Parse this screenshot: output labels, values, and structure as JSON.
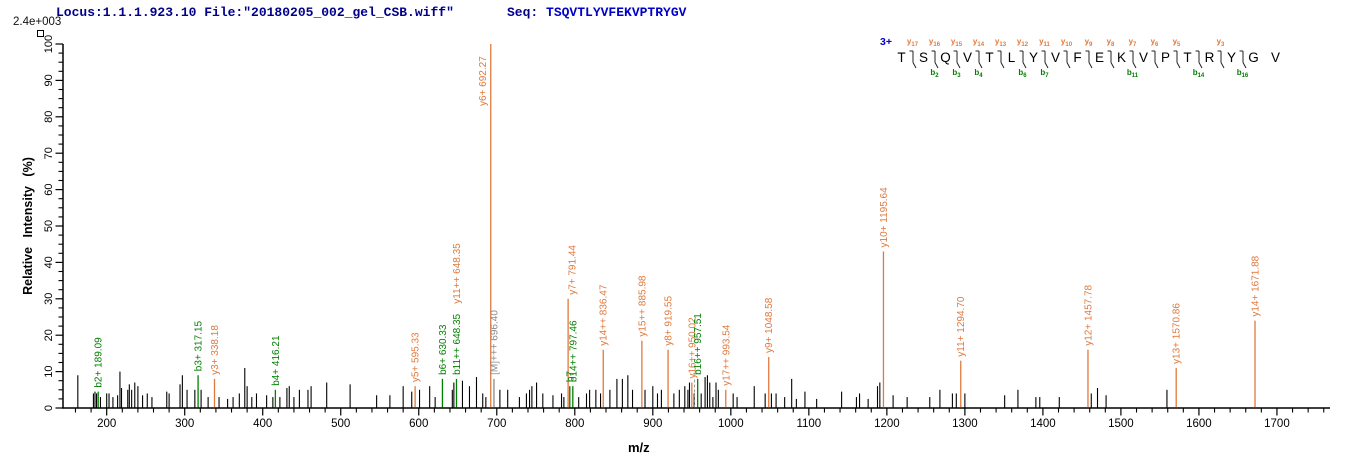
{
  "header": {
    "locus_file": "Locus:1.1.1.923.10 File:\"20180205_002_gel_CSB.wiff\"",
    "seq_prefix": "Seq: ",
    "seq_value": "TSQVTLYVFEKVPTRYGV",
    "max_intensity": "2.4e+003"
  },
  "colors": {
    "background": "#ffffff",
    "header_text": "#00008b",
    "seq_text": "#0000cd",
    "y_ion": "#e0793d",
    "b_ion": "#008000",
    "precursor": "#8a8a8a",
    "peak": "#000000",
    "axis": "#000000"
  },
  "sequence_panel": {
    "charge_label": "3+",
    "residues": [
      "T",
      "S",
      "Q",
      "V",
      "T",
      "L",
      "Y",
      "V",
      "F",
      "E",
      "K",
      "V",
      "P",
      "T",
      "R",
      "Y",
      "G",
      "V"
    ],
    "cleavages": [
      {
        "after": 1,
        "y": "y17"
      },
      {
        "after": 2,
        "y": "y16",
        "b": "b2"
      },
      {
        "after": 3,
        "y": "y15",
        "b": "b3"
      },
      {
        "after": 4,
        "y": "y14",
        "b": "b4"
      },
      {
        "after": 5,
        "y": "y13"
      },
      {
        "after": 6,
        "y": "y12",
        "b": "b6"
      },
      {
        "after": 7,
        "y": "y11",
        "b": "b7"
      },
      {
        "after": 8,
        "y": "y10"
      },
      {
        "after": 9,
        "y": "y9"
      },
      {
        "after": 10,
        "y": "y8"
      },
      {
        "after": 11,
        "y": "y7",
        "b": "b11"
      },
      {
        "after": 12,
        "y": "y6"
      },
      {
        "after": 13,
        "y": "y5"
      },
      {
        "after": 14,
        "b": "b14"
      },
      {
        "after": 15,
        "y": "y3"
      },
      {
        "after": 16,
        "b": "b16"
      }
    ]
  },
  "chart_data": {
    "type": "bar",
    "title": "",
    "xlabel": "m/z",
    "ylabel": "Relative Intensity (%)",
    "xlim": [
      144,
      1768
    ],
    "ylim": [
      0,
      100
    ],
    "grid": false,
    "x_ticks": {
      "start": 200,
      "end": 1700,
      "step": 100,
      "minor_step": 20,
      "minor_start": 160,
      "minor_end": 1760
    },
    "y_ticks": {
      "start": 0,
      "end": 100,
      "step": 10,
      "minor_step": 2.5
    },
    "annotated_peaks": [
      {
        "mz": 189.09,
        "intensity": 4.5,
        "label": "b2+ 189.09",
        "type": "b"
      },
      {
        "mz": 317.15,
        "intensity": 9,
        "label": "b3+ 317.15",
        "type": "b"
      },
      {
        "mz": 338.18,
        "intensity": 8,
        "label": "y3+ 338.18",
        "type": "y"
      },
      {
        "mz": 416.21,
        "intensity": 5,
        "label": "b4+ 416.21",
        "type": "b"
      },
      {
        "mz": 595.33,
        "intensity": 6,
        "label": "y5+ 595.33",
        "type": "y"
      },
      {
        "mz": 630.33,
        "intensity": 8,
        "label": "b6+ 630.33",
        "type": "b"
      },
      {
        "mz": 648.35,
        "intensity": 8,
        "label": "b11++ 648.35",
        "type": "b",
        "label2": "y11++ 648.35",
        "label2_type": "y"
      },
      {
        "mz": 692.27,
        "intensity": 100,
        "label": "y6+ 692.27",
        "type": "y",
        "label_pos": "beside"
      },
      {
        "mz": 696.4,
        "intensity": 8,
        "label": "[M]+++ 696.40",
        "type": "M"
      },
      {
        "mz": 791.44,
        "intensity": 30,
        "label": "y7+ 791.44",
        "type": "y",
        "label_dx": 4
      },
      {
        "mz": 793.6,
        "intensity": 6,
        "label": "b7",
        "type": "b"
      },
      {
        "mz": 797.46,
        "intensity": 6,
        "label": "b14++ 797.46",
        "type": "b"
      },
      {
        "mz": 836.47,
        "intensity": 16,
        "label": "y14++ 836.47",
        "type": "y"
      },
      {
        "mz": 885.98,
        "intensity": 18.5,
        "label": "y15++ 885.98",
        "type": "y"
      },
      {
        "mz": 919.55,
        "intensity": 16,
        "label": "y8+ 919.55",
        "type": "y"
      },
      {
        "mz": 950.02,
        "intensity": 7,
        "label": "y16++ 950.02",
        "type": "y"
      },
      {
        "mz": 957.51,
        "intensity": 8,
        "label": "b16++ 957.51",
        "type": "b"
      },
      {
        "mz": 993.54,
        "intensity": 5,
        "label": "y17++ 993.54",
        "type": "y"
      },
      {
        "mz": 1048.58,
        "intensity": 14,
        "label": "y9+ 1048.58",
        "type": "y"
      },
      {
        "mz": 1195.64,
        "intensity": 43,
        "label": "y10+ 1195.64",
        "type": "y"
      },
      {
        "mz": 1294.7,
        "intensity": 13,
        "label": "y11+ 1294.70",
        "type": "y"
      },
      {
        "mz": 1457.78,
        "intensity": 16,
        "label": "y12+ 1457.78",
        "type": "y"
      },
      {
        "mz": 1570.86,
        "intensity": 11,
        "label": "y13+ 1570.86",
        "type": "y"
      },
      {
        "mz": 1671.88,
        "intensity": 24,
        "label": "y14+ 1671.88",
        "type": "y"
      }
    ],
    "dashed_leader": {
      "mz": 953.5,
      "intensity": 8
    },
    "unlabeled_peaks": [
      [
        163,
        9
      ],
      [
        183,
        4
      ],
      [
        185,
        4.5
      ],
      [
        187,
        4
      ],
      [
        192,
        3
      ],
      [
        200,
        4
      ],
      [
        203,
        4
      ],
      [
        208,
        3
      ],
      [
        214,
        3.5
      ],
      [
        217,
        10
      ],
      [
        219,
        5.5
      ],
      [
        227,
        5
      ],
      [
        229,
        6.5
      ],
      [
        232,
        5
      ],
      [
        236,
        7
      ],
      [
        240,
        6
      ],
      [
        246,
        3.5
      ],
      [
        252,
        4
      ],
      [
        258,
        3
      ],
      [
        277,
        4.5
      ],
      [
        280,
        4
      ],
      [
        294,
        6.5
      ],
      [
        297,
        9
      ],
      [
        303,
        5
      ],
      [
        313,
        5
      ],
      [
        321,
        5
      ],
      [
        330,
        3
      ],
      [
        344,
        3
      ],
      [
        355,
        2.5
      ],
      [
        362,
        3
      ],
      [
        370,
        4
      ],
      [
        377,
        11
      ],
      [
        380,
        6
      ],
      [
        386,
        3
      ],
      [
        392,
        4
      ],
      [
        405,
        3.5
      ],
      [
        413,
        3
      ],
      [
        422,
        3
      ],
      [
        431,
        5.5
      ],
      [
        434,
        6
      ],
      [
        440,
        3
      ],
      [
        447,
        5
      ],
      [
        458,
        5
      ],
      [
        462,
        6
      ],
      [
        482,
        7
      ],
      [
        512,
        6.5
      ],
      [
        546,
        3.5
      ],
      [
        563,
        3.5
      ],
      [
        580,
        6
      ],
      [
        591,
        4.5
      ],
      [
        601,
        5
      ],
      [
        614,
        6
      ],
      [
        621,
        3
      ],
      [
        643,
        5
      ],
      [
        645,
        7
      ],
      [
        656,
        7.5
      ],
      [
        665,
        6
      ],
      [
        674,
        8.5
      ],
      [
        682,
        4
      ],
      [
        686,
        3
      ],
      [
        704,
        5
      ],
      [
        714,
        5
      ],
      [
        729,
        3
      ],
      [
        738,
        4
      ],
      [
        742,
        5
      ],
      [
        745,
        6
      ],
      [
        751,
        7
      ],
      [
        759,
        4
      ],
      [
        772,
        3.5
      ],
      [
        783,
        4
      ],
      [
        786,
        3
      ],
      [
        805,
        3
      ],
      [
        815,
        4
      ],
      [
        819,
        5
      ],
      [
        827,
        5
      ],
      [
        833,
        4
      ],
      [
        845,
        5
      ],
      [
        854,
        8
      ],
      [
        861,
        8
      ],
      [
        868,
        9
      ],
      [
        874,
        5
      ],
      [
        890,
        5
      ],
      [
        900,
        6
      ],
      [
        906,
        4
      ],
      [
        911,
        5
      ],
      [
        927,
        4
      ],
      [
        934,
        5
      ],
      [
        941,
        6
      ],
      [
        945,
        5
      ],
      [
        947,
        7
      ],
      [
        953,
        4
      ],
      [
        962,
        4
      ],
      [
        967,
        8.5
      ],
      [
        970,
        9
      ],
      [
        973,
        7
      ],
      [
        977,
        3
      ],
      [
        981,
        7
      ],
      [
        984,
        5
      ],
      [
        1003,
        4
      ],
      [
        1008,
        3
      ],
      [
        1030,
        6
      ],
      [
        1044,
        4
      ],
      [
        1052,
        4
      ],
      [
        1058,
        4
      ],
      [
        1069,
        3
      ],
      [
        1078,
        8
      ],
      [
        1084,
        2.5
      ],
      [
        1095,
        4.5
      ],
      [
        1110,
        2.5
      ],
      [
        1142,
        4.5
      ],
      [
        1161,
        3
      ],
      [
        1165,
        4
      ],
      [
        1176,
        2.5
      ],
      [
        1188,
        6
      ],
      [
        1191,
        7
      ],
      [
        1208,
        3.5
      ],
      [
        1226,
        3
      ],
      [
        1255,
        3
      ],
      [
        1268,
        5
      ],
      [
        1284,
        4
      ],
      [
        1289,
        4
      ],
      [
        1300,
        4
      ],
      [
        1351,
        3.5
      ],
      [
        1368,
        5
      ],
      [
        1391,
        3
      ],
      [
        1396,
        3
      ],
      [
        1421,
        3
      ],
      [
        1462,
        4
      ],
      [
        1470,
        5.5
      ],
      [
        1481,
        3.5
      ],
      [
        1559,
        5
      ]
    ]
  }
}
